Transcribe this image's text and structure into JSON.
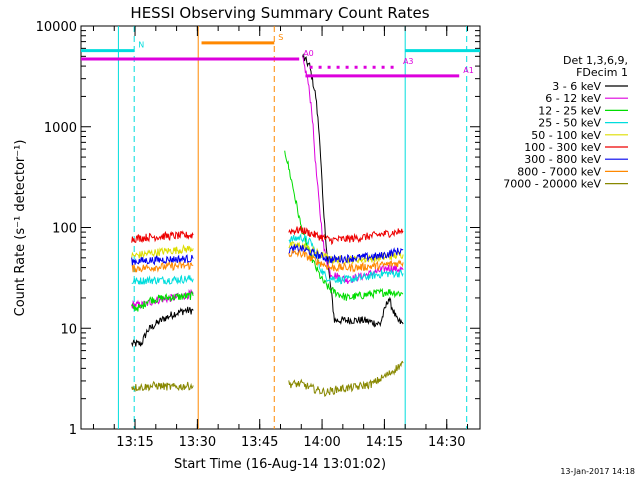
{
  "chart_data": {
    "type": "line",
    "title": "HESSI Observing Summary Count Rates",
    "xlabel": "Start Time (16-Aug-14 13:01:02)",
    "ylabel": "Count Rate (s⁻¹ detector⁻¹)",
    "yscale": "log",
    "xlim": [
      2.0,
      98.0
    ],
    "ylim": [
      1,
      10000
    ],
    "x_unit": "minutes after 13:00 UT",
    "x_ticks": [
      {
        "value": 15,
        "label": "13:15"
      },
      {
        "value": 30,
        "label": "13:30"
      },
      {
        "value": 45,
        "label": "13:45"
      },
      {
        "value": 60,
        "label": "14:00"
      },
      {
        "value": 75,
        "label": "14:15"
      },
      {
        "value": 90,
        "label": "14:30"
      }
    ],
    "y_ticks": [
      {
        "value": 1,
        "label": "1"
      },
      {
        "value": 10,
        "label": "10"
      },
      {
        "value": 100,
        "label": "100"
      },
      {
        "value": 1000,
        "label": "1000"
      },
      {
        "value": 10000,
        "label": "10000"
      }
    ],
    "legend": {
      "position": "right",
      "header": [
        "Det 1,3,6,9,",
        "FDecim 1"
      ],
      "entries": [
        {
          "label": "3 - 6 keV",
          "color": "#000000"
        },
        {
          "label": "6 - 12 keV",
          "color": "#dd00dd"
        },
        {
          "label": "12 - 25 keV",
          "color": "#00dd00"
        },
        {
          "label": "25 - 50 keV",
          "color": "#00dddd"
        },
        {
          "label": "50 - 100 keV",
          "color": "#dddd00"
        },
        {
          "label": "100 - 300 keV",
          "color": "#ee0000"
        },
        {
          "label": "300 - 800 keV",
          "color": "#0000ee"
        },
        {
          "label": "800 - 7000 keV",
          "color": "#ff8800"
        },
        {
          "label": "7000 - 20000 keV",
          "color": "#888800"
        }
      ]
    },
    "series": [
      {
        "band": "3 - 6 keV",
        "color": "#000000",
        "segments": [
          {
            "x": [
              14.2,
              16.5,
              18.0,
              20.0,
              22.0,
              24.5,
              27.0,
              29.0
            ],
            "y": [
              7,
              7,
              9.5,
              11,
              12.5,
              14,
              15,
              15
            ]
          },
          {
            "x": [
              55.3,
              57.0,
              58.5,
              59.5,
              60.3,
              61.5,
              63.0,
              66.0,
              70.0,
              74.0,
              76.0,
              78.0,
              79.5
            ],
            "y": [
              5000,
              4000,
              2000,
              700,
              150,
              40,
              12,
              12,
              12,
              11,
              20,
              12,
              11
            ]
          }
        ]
      },
      {
        "band": "6 - 12 keV",
        "color": "#dd00dd",
        "segments": [
          {
            "x": [
              14.2,
              17.0,
              20.0,
              24.0,
              29.0
            ],
            "y": [
              17,
              17,
              19,
              20,
              22
            ]
          },
          {
            "x": [
              55.3,
              56.5,
              57.5,
              58.5,
              59.5,
              60.5,
              62.0,
              66.0,
              72.0,
              76.0,
              79.5
            ],
            "y": [
              4700,
              3000,
              1500,
              400,
              140,
              60,
              35,
              30,
              35,
              40,
              38
            ]
          }
        ]
      },
      {
        "band": "12 - 25 keV",
        "color": "#00dd00",
        "segments": [
          {
            "x": [
              14.2,
              16.5,
              18.0,
              22.0,
              29.0
            ],
            "y": [
              16,
              16,
              19,
              20,
              21
            ]
          },
          {
            "x": [
              51.0,
              53.0,
              55.0,
              57.0,
              58.5,
              60.0,
              62.0,
              66.0,
              72.0,
              76.0,
              79.5
            ],
            "y": [
              600,
              250,
              100,
              55,
              40,
              30,
              24,
              20,
              22,
              23,
              22
            ]
          }
        ]
      },
      {
        "band": "25 - 50 keV",
        "color": "#00dddd",
        "segments": [
          {
            "x": [
              14.2,
              18.0,
              22.0,
              29.0
            ],
            "y": [
              29,
              30,
              30,
              31
            ]
          },
          {
            "x": [
              52.0,
              55.0,
              57.5,
              59.5,
              61.0,
              65.0,
              70.0,
              75.0,
              79.5
            ],
            "y": [
              75,
              80,
              70,
              40,
              32,
              30,
              32,
              35,
              35
            ]
          }
        ]
      },
      {
        "band": "50 - 100 keV",
        "color": "#dddd00",
        "segments": [
          {
            "x": [
              14.2,
              18.0,
              22.0,
              29.0
            ],
            "y": [
              52,
              55,
              58,
              62
            ]
          },
          {
            "x": [
              52.0,
              55.0,
              58.0,
              62.0,
              68.0,
              74.0,
              79.5
            ],
            "y": [
              66,
              66,
              58,
              48,
              48,
              50,
              54
            ]
          }
        ]
      },
      {
        "band": "100 - 300 keV",
        "color": "#ee0000",
        "segments": [
          {
            "x": [
              14.2,
              18.0,
              22.0,
              29.0
            ],
            "y": [
              77,
              80,
              82,
              84
            ]
          },
          {
            "x": [
              52.0,
              55.0,
              58.0,
              62.0,
              68.0,
              74.0,
              79.5
            ],
            "y": [
              92,
              95,
              85,
              75,
              78,
              85,
              92
            ]
          }
        ]
      },
      {
        "band": "300 - 800 keV",
        "color": "#0000ee",
        "segments": [
          {
            "x": [
              14.2,
              18.0,
              22.0,
              29.0
            ],
            "y": [
              46,
              47,
              48,
              49
            ]
          },
          {
            "x": [
              52.0,
              55.0,
              58.0,
              62.0,
              68.0,
              74.0,
              79.5
            ],
            "y": [
              60,
              62,
              55,
              48,
              50,
              52,
              60
            ]
          }
        ]
      },
      {
        "band": "800 - 7000 keV",
        "color": "#ff8800",
        "segments": [
          {
            "x": [
              14.2,
              18.0,
              22.0,
              29.0
            ],
            "y": [
              39,
              40,
              41,
              42
            ]
          },
          {
            "x": [
              52.0,
              55.0,
              58.0,
              62.0,
              68.0,
              74.0,
              79.5
            ],
            "y": [
              55,
              55,
              48,
              40,
              40,
              42,
              45
            ]
          }
        ]
      },
      {
        "band": "7000 - 20000 keV",
        "color": "#888800",
        "segments": [
          {
            "x": [
              14.2,
              17.0,
              20.0,
              24.0,
              29.0
            ],
            "y": [
              2.6,
              2.6,
              2.7,
              2.6,
              2.7
            ]
          },
          {
            "x": [
              52.0,
              55.0,
              58.0,
              61.0,
              64.0,
              68.0,
              72.0,
              76.0,
              79.5
            ],
            "y": [
              2.8,
              2.8,
              2.5,
              2.3,
              2.5,
              2.6,
              2.8,
              3.5,
              4.5
            ]
          }
        ]
      }
    ],
    "annotations": [
      {
        "label": "N",
        "color": "#00dddd",
        "y": 5700,
        "segments": [
          [
            2.0,
            14.8
          ],
          [
            80.0,
            98.0
          ]
        ]
      },
      {
        "label": "S",
        "color": "#ff8800",
        "y": 6800,
        "segments": [
          [
            31.0,
            48.5
          ]
        ]
      },
      {
        "label": "A0",
        "color": "#dd00dd",
        "y": 4700,
        "segments": [
          [
            2.0,
            54.5
          ]
        ]
      },
      {
        "label": "A3",
        "color": "#dd00dd",
        "y": 3900,
        "style": "dotted",
        "segments": [
          [
            57.0,
            78.5
          ]
        ]
      },
      {
        "label": "A1",
        "color": "#dd00dd",
        "y": 3200,
        "segments": [
          [
            56.0,
            93.0
          ]
        ]
      }
    ],
    "vertical_markers": [
      {
        "x": 11.0,
        "color": "#00dddd",
        "style": "solid"
      },
      {
        "x": 14.8,
        "color": "#00dddd",
        "style": "dashed"
      },
      {
        "x": 30.2,
        "color": "#ff8800",
        "style": "solid"
      },
      {
        "x": 48.5,
        "color": "#ff8800",
        "style": "dashed"
      },
      {
        "x": 80.0,
        "color": "#00dddd",
        "style": "solid"
      },
      {
        "x": 94.8,
        "color": "#00dddd",
        "style": "dashed"
      }
    ]
  },
  "footer": {
    "date_stamp": "13-Jan-2017 14:18"
  }
}
